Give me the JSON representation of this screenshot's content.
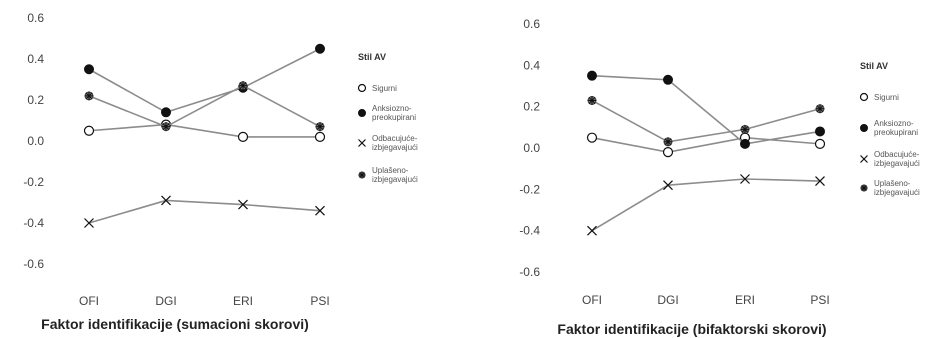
{
  "chart_data": [
    {
      "type": "line",
      "categories": [
        "OFI",
        "DGI",
        "ERI",
        "PSI"
      ],
      "xlabel": "Faktor identifikacije (sumacioni skorovi)",
      "ylabel": "",
      "ylim": [
        -0.6,
        0.6
      ],
      "yticks": [
        "0.6",
        "0.4",
        "0.2",
        "0.0",
        "-0.2",
        "-0.4",
        "-0.6"
      ],
      "legend_title": "Stil AV",
      "legend_position": "right",
      "series": [
        {
          "name": "Sigurni",
          "marker": "open-circle",
          "values": [
            0.05,
            0.08,
            0.02,
            0.02
          ]
        },
        {
          "name": "Anksiozno-preokupirani",
          "marker": "filled-circle",
          "values": [
            0.35,
            0.14,
            0.26,
            0.45
          ]
        },
        {
          "name": "Odbacujuće-izbjegavajući",
          "marker": "cross",
          "values": [
            -0.4,
            -0.29,
            -0.31,
            -0.34
          ]
        },
        {
          "name": "Uplašeno-izbjegavajući",
          "marker": "asterisk",
          "values": [
            0.22,
            0.07,
            0.27,
            0.07
          ]
        }
      ]
    },
    {
      "type": "line",
      "categories": [
        "OFI",
        "DGI",
        "ERI",
        "PSI"
      ],
      "xlabel": "Faktor identifikacije (bifaktorski skorovi)",
      "ylabel": "",
      "ylim": [
        -0.6,
        0.6
      ],
      "yticks": [
        "0.6",
        "0.4",
        "0.2",
        "0.0",
        "-0.2",
        "-0.4",
        "-0.6"
      ],
      "legend_title": "Stil AV",
      "legend_position": "right",
      "series": [
        {
          "name": "Sigurni",
          "marker": "open-circle",
          "values": [
            0.05,
            -0.02,
            0.05,
            0.02
          ]
        },
        {
          "name": "Anksiozno-preokupirani",
          "marker": "filled-circle",
          "values": [
            0.35,
            0.33,
            0.02,
            0.08
          ]
        },
        {
          "name": "Odbacujuće-izbjegavajući",
          "marker": "cross",
          "values": [
            -0.4,
            -0.18,
            -0.15,
            -0.16
          ]
        },
        {
          "name": "Uplašeno-izbjegavajući",
          "marker": "asterisk",
          "values": [
            0.23,
            0.03,
            0.09,
            0.19
          ]
        }
      ]
    }
  ],
  "style": {
    "line_color": "#8c8c8c",
    "marker_color": "#111111",
    "text_color": "#444444"
  }
}
